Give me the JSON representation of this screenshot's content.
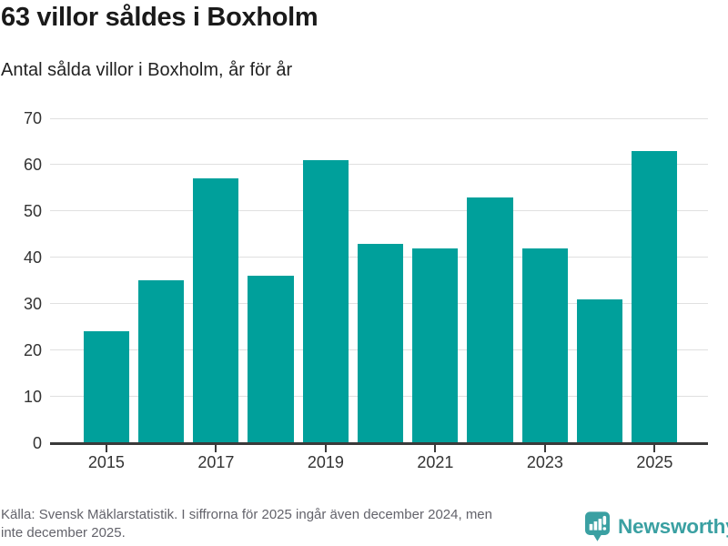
{
  "header": {
    "title": "63 villor såldes i Boxholm",
    "subtitle": "Antal sålda villor i Boxholm, år för år"
  },
  "chart_data": {
    "type": "bar",
    "title": "63 villor såldes i Boxholm",
    "subtitle": "Antal sålda villor i Boxholm, år för år",
    "categories": [
      "2015",
      "2016",
      "2017",
      "2018",
      "2019",
      "2020",
      "2021",
      "2022",
      "2023",
      "2024",
      "2025"
    ],
    "values": [
      24,
      35,
      57,
      36,
      61,
      43,
      42,
      53,
      42,
      31,
      63
    ],
    "xlabel": "",
    "ylabel": "",
    "ylim": [
      0,
      70
    ],
    "y_ticks": [
      0,
      10,
      20,
      30,
      40,
      50,
      60,
      70
    ],
    "x_tick_labels": [
      "2015",
      "2017",
      "2019",
      "2021",
      "2023",
      "2025"
    ],
    "grid": true,
    "legend": false,
    "bar_color": "#00a09b",
    "grid_color": "#e0e0e0",
    "axis_color": "#3a3a3a",
    "tick_label_color": "#333333"
  },
  "footer": {
    "lines": [
      "Källa: Svensk Mäklarstatistik. I siffrorna för 2025 ingår även december 2024, men",
      "inte december 2025."
    ],
    "logo_text": "Newsworthy",
    "logo_color": "#3aa0a2"
  },
  "icons": {
    "logo": "newsworthy-bubble-barchart-icon"
  }
}
